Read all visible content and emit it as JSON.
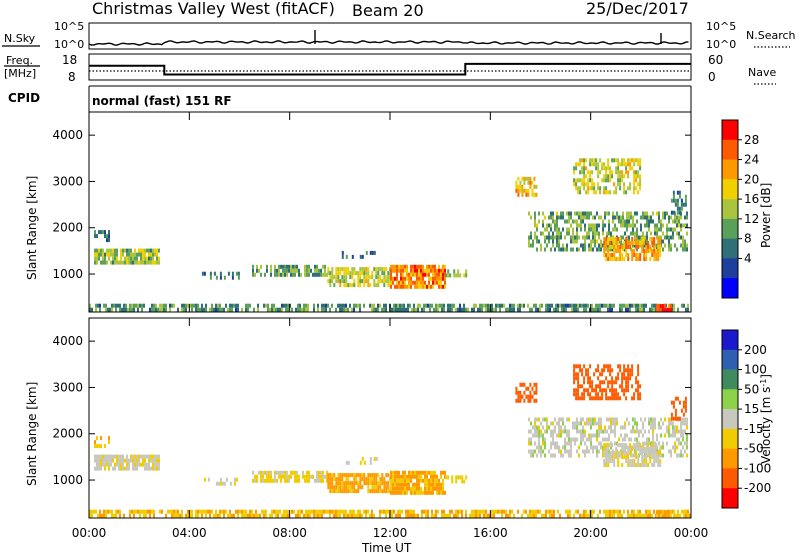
{
  "header": {
    "station": "Christmas Valley West (fitACF)",
    "beam": "Beam 20",
    "date": "25/Dec/2017"
  },
  "noise_panel": {
    "left_label": "N.Sky",
    "right_label": "N.Search",
    "left_ticks": [
      "10^5",
      "10^0"
    ],
    "right_ticks": [
      "10^5",
      "10^0"
    ]
  },
  "freq_panel": {
    "left_label_line1": "Freq.",
    "left_label_line2": "[MHz]",
    "right_label": "Nave",
    "left_ticks": [
      "18",
      "8"
    ],
    "right_ticks": [
      "60",
      "0"
    ],
    "freq_steps": [
      {
        "t0": 0,
        "t1": 3,
        "mhz": 13.6
      },
      {
        "t0": 3,
        "t1": 15,
        "mhz": 9.6
      },
      {
        "t0": 15,
        "t1": 24,
        "mhz": 14.4
      }
    ]
  },
  "cpid": {
    "label": "CPID",
    "value": "normal (fast) 151 RF"
  },
  "axes": {
    "ylabel": "Slant Range [km]",
    "xlabel": "Time UT",
    "yticks": [
      "4000",
      "3000",
      "2000",
      "1000"
    ],
    "xticks": [
      "00:00",
      "04:00",
      "08:00",
      "12:00",
      "16:00",
      "20:00",
      "00:00"
    ]
  },
  "power_colorbar": {
    "label": "Power [dB]",
    "ticks": [
      "28",
      "24",
      "20",
      "16",
      "12",
      "8",
      "4"
    ],
    "colors": [
      "#ff0000",
      "#ff5a00",
      "#ff9900",
      "#f0d000",
      "#a9c53f",
      "#5aa05a",
      "#2f6f78",
      "#1e3f9c",
      "#0000ff"
    ]
  },
  "velocity_colorbar": {
    "label": "Velocity [m s-1]",
    "ticks": [
      "200",
      "100",
      "50",
      "15",
      "-15",
      "-50",
      "-100",
      "-200"
    ],
    "colors": [
      "#1a1acc",
      "#2f5fb0",
      "#3f8a5f",
      "#8dd24a",
      "#c8c8be",
      "#f0cc00",
      "#ff9900",
      "#ff5a00",
      "#ff0000"
    ]
  },
  "chart_data": {
    "type": "heatmap",
    "x_range_hours": [
      0,
      24
    ],
    "y_range_km": [
      180,
      4500
    ],
    "regions": [
      {
        "t0": 0.0,
        "t1": 24.0,
        "r0": 200,
        "r1": 360,
        "power": 10,
        "velocity": -45,
        "density": 0.7
      },
      {
        "t0": 0.2,
        "t1": 2.8,
        "r0": 1250,
        "r1": 1550,
        "power": 14,
        "velocity": -5,
        "density": 0.85
      },
      {
        "t0": 0.2,
        "t1": 0.8,
        "r0": 1700,
        "r1": 1950,
        "power": 8,
        "velocity": -40,
        "density": 0.6
      },
      {
        "t0": 4.5,
        "t1": 6.0,
        "r0": 900,
        "r1": 1050,
        "power": 8,
        "velocity": -10,
        "density": 0.35
      },
      {
        "t0": 6.5,
        "t1": 9.5,
        "r0": 950,
        "r1": 1200,
        "power": 12,
        "velocity": -20,
        "density": 0.75
      },
      {
        "t0": 9.5,
        "t1": 12.0,
        "r0": 800,
        "r1": 1150,
        "power": 16,
        "velocity": -60,
        "density": 0.8
      },
      {
        "t0": 12.0,
        "t1": 14.2,
        "r0": 750,
        "r1": 1200,
        "power": 24,
        "velocity": -55,
        "density": 0.85
      },
      {
        "t0": 14.2,
        "t1": 15.0,
        "r0": 950,
        "r1": 1100,
        "power": 14,
        "velocity": -30,
        "density": 0.5
      },
      {
        "t0": 10.0,
        "t1": 11.5,
        "r0": 1350,
        "r1": 1500,
        "power": 8,
        "velocity": -5,
        "density": 0.3
      },
      {
        "t0": 17.0,
        "t1": 17.8,
        "r0": 2700,
        "r1": 3100,
        "power": 20,
        "velocity": -150,
        "density": 0.6
      },
      {
        "t0": 17.5,
        "t1": 23.8,
        "r0": 1500,
        "r1": 2350,
        "power": 12,
        "velocity": 0,
        "density": 0.55
      },
      {
        "t0": 19.3,
        "t1": 22.0,
        "r0": 2750,
        "r1": 3500,
        "power": 16,
        "velocity": -180,
        "density": 0.55
      },
      {
        "t0": 20.5,
        "t1": 22.8,
        "r0": 1300,
        "r1": 1800,
        "power": 22,
        "velocity": -8,
        "density": 0.7
      },
      {
        "t0": 23.2,
        "t1": 23.8,
        "r0": 2300,
        "r1": 2800,
        "power": 8,
        "velocity": -120,
        "density": 0.45
      },
      {
        "t0": 22.6,
        "t1": 23.2,
        "r0": 220,
        "r1": 350,
        "power": 28,
        "velocity": -60,
        "density": 0.9
      }
    ]
  }
}
